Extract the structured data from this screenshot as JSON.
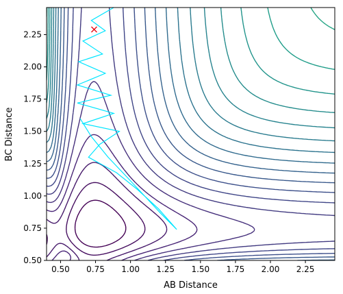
{
  "chart_data": {
    "type": "contour",
    "title": "",
    "xlabel": "AB Distance",
    "ylabel": "BC Distance",
    "xlim": [
      0.4,
      2.46
    ],
    "ylim": [
      0.5,
      2.46
    ],
    "x_ticks": [
      "0.50",
      "0.75",
      "1.00",
      "1.25",
      "1.50",
      "1.75",
      "2.00",
      "2.25"
    ],
    "y_ticks": [
      "0.50",
      "0.75",
      "1.00",
      "1.25",
      "1.50",
      "1.75",
      "2.00",
      "2.25"
    ],
    "grid": false,
    "legend": "none",
    "colormap": "viridis",
    "contour_levels": 30,
    "trajectory": {
      "color": "#00e5ff",
      "points": [
        [
          0.88,
          2.46
        ],
        [
          0.72,
          2.36
        ],
        [
          0.82,
          2.28
        ],
        [
          0.66,
          2.2
        ],
        [
          0.8,
          2.1
        ],
        [
          0.63,
          2.04
        ],
        [
          0.82,
          1.95
        ],
        [
          0.62,
          1.86
        ],
        [
          0.86,
          1.78
        ],
        [
          0.62,
          1.72
        ],
        [
          0.88,
          1.64
        ],
        [
          0.66,
          1.56
        ],
        [
          0.92,
          1.5
        ],
        [
          0.78,
          1.4
        ],
        [
          0.7,
          1.3
        ],
        [
          0.9,
          1.18
        ],
        [
          1.05,
          1.05
        ],
        [
          1.2,
          0.9
        ],
        [
          1.33,
          0.74
        ],
        [
          1.22,
          0.86
        ],
        [
          1.1,
          1.0
        ],
        [
          0.98,
          1.14
        ],
        [
          0.84,
          1.3
        ],
        [
          0.72,
          1.46
        ],
        [
          0.64,
          1.6
        ]
      ]
    },
    "marker": {
      "x": 0.74,
      "y": 2.29,
      "symbol": "x",
      "color": "#e8000b"
    },
    "colors": {
      "low": "#440154",
      "high": "#fde725",
      "trajectory": "#00e5ff",
      "marker": "#e8000b"
    }
  }
}
